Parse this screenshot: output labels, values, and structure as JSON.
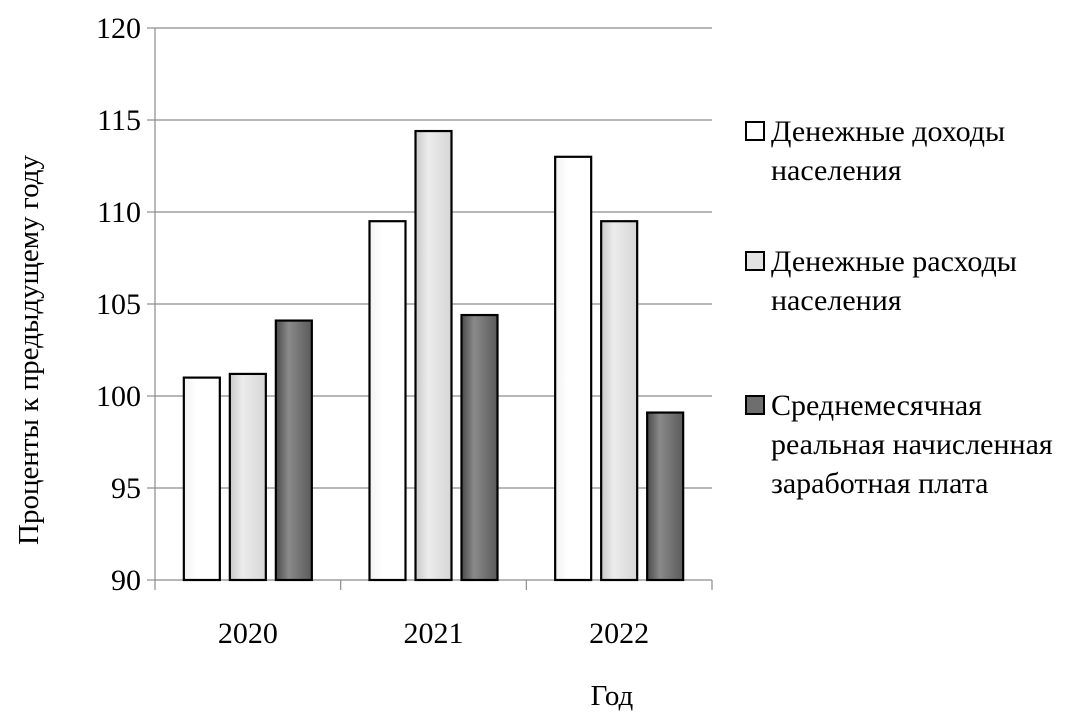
{
  "chart_data": {
    "type": "bar",
    "categories": [
      "2020",
      "2021",
      "2022"
    ],
    "series": [
      {
        "name": "Денежные доходы населения",
        "values": [
          101.0,
          109.5,
          113.0
        ],
        "color": "#ffffff"
      },
      {
        "name": "Денежные расходы населения",
        "values": [
          101.2,
          114.4,
          109.5
        ],
        "color": "#e3e3e3"
      },
      {
        "name": "Среднемесячная реальная начисленная заработная плата",
        "values": [
          104.1,
          104.4,
          99.1
        ],
        "color": "#6e6e6e"
      }
    ],
    "xlabel": "Год",
    "ylabel": "Проценты к предыдущему году",
    "ylim": [
      90,
      120
    ],
    "yticks": [
      90,
      95,
      100,
      105,
      110,
      115,
      120
    ],
    "grid": true,
    "legend_position": "right"
  }
}
